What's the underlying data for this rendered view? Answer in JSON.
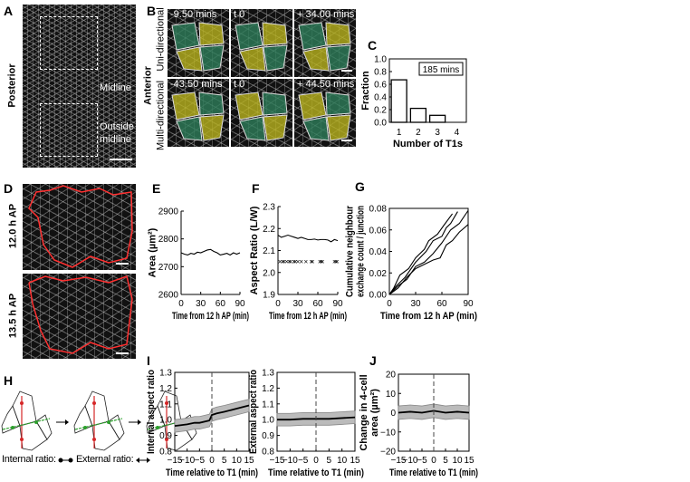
{
  "panels": {
    "A": "A",
    "B": "B",
    "C": "C",
    "D": "D",
    "E": "E",
    "F": "F",
    "G": "G",
    "H": "H",
    "I": "I",
    "J": "J"
  },
  "a": {
    "posterior": "Posterior",
    "anterior": "Anterior",
    "midline": "Midline",
    "outside1": "Outside",
    "outside2": "midline"
  },
  "b": {
    "row1_label": "Uni-directional",
    "row2_label": "Multi-directional",
    "row1": [
      "-9.50 mins",
      "t 0",
      "+ 34.00 mins"
    ],
    "row2": [
      "-43.50 mins",
      "t 0",
      "+ 44.50 mins"
    ],
    "colors": {
      "green": "#2e7d5a",
      "yellow": "#b8b21e"
    }
  },
  "d": {
    "top_label": "12.0 h AP",
    "bottom_label": "13.5 h AP",
    "outline_color": "#ff3030",
    "arrow_color": "#ffff00"
  },
  "h": {
    "internal": "Internal ratio:",
    "external": "External ratio:",
    "colors": {
      "internal": "#2ca02c",
      "external": "#d62728"
    }
  },
  "chart_data": [
    {
      "id": "C",
      "type": "bar",
      "categories": [
        "1",
        "2",
        "3",
        "4"
      ],
      "values": [
        0.67,
        0.22,
        0.11,
        0
      ],
      "ylabel": "Fraction",
      "xlabel": "Number of T1s",
      "ylim": [
        0,
        1.0
      ],
      "yticks": [
        "0.0",
        "0.2",
        "0.4",
        "0.6",
        "0.8",
        "1.0"
      ],
      "annotation": "185 mins"
    },
    {
      "id": "E",
      "type": "line",
      "ylabel": "Area (µm²)",
      "xlabel": "Time from 12 h AP (min)",
      "xlim": [
        0,
        90
      ],
      "ylim": [
        2600,
        2900
      ],
      "xticks": [
        "0",
        "30",
        "60",
        "90"
      ],
      "yticks": [
        "2600",
        "2700",
        "2800",
        "2900"
      ],
      "series": [
        {
          "x": [
            0,
            5,
            10,
            15,
            20,
            25,
            30,
            35,
            40,
            45,
            50,
            55,
            60,
            65,
            70,
            75,
            80,
            85,
            90
          ],
          "y": [
            2750,
            2745,
            2742,
            2748,
            2745,
            2752,
            2750,
            2755,
            2760,
            2762,
            2755,
            2750,
            2742,
            2745,
            2748,
            2742,
            2750,
            2745,
            2750
          ]
        }
      ]
    },
    {
      "id": "F",
      "type": "line",
      "ylabel": "Aspect Ratio (L/W)",
      "xlabel": "Time from 12 h AP (min)",
      "xlim": [
        0,
        90
      ],
      "ylim": [
        1.9,
        2.3
      ],
      "xticks": [
        "0",
        "30",
        "60",
        "90"
      ],
      "yticks": [
        "1.9",
        "2.0",
        "2.1",
        "2.2",
        "2.3"
      ],
      "series": [
        {
          "x": [
            0,
            5,
            10,
            15,
            20,
            25,
            30,
            35,
            40,
            45,
            50,
            55,
            60,
            65,
            70,
            75,
            80,
            85,
            90
          ],
          "y": [
            2.17,
            2.16,
            2.165,
            2.17,
            2.165,
            2.16,
            2.155,
            2.16,
            2.155,
            2.15,
            2.15,
            2.152,
            2.148,
            2.15,
            2.15,
            2.148,
            2.14,
            2.15,
            2.145
          ]
        }
      ],
      "markers": {
        "y": 2.05,
        "x": [
          3,
          7,
          9,
          13,
          17,
          19,
          24,
          26,
          30,
          35,
          42,
          50,
          52,
          63,
          65,
          67,
          85,
          87,
          89
        ]
      }
    },
    {
      "id": "G",
      "type": "line",
      "ylabel": "Cumulative neighbour exchange count / junction",
      "xlabel": "Time from 12 h AP (min)",
      "xlim": [
        0,
        90
      ],
      "ylim": [
        0,
        0.08
      ],
      "xticks": [
        "0",
        "30",
        "60",
        "90"
      ],
      "yticks": [
        "0.00",
        "0.02",
        "0.04",
        "0.06",
        "0.08"
      ],
      "series": [
        {
          "x": [
            0,
            5,
            12,
            22,
            30,
            40,
            45,
            55,
            62,
            72
          ],
          "y": [
            0,
            0.006,
            0.018,
            0.024,
            0.034,
            0.042,
            0.05,
            0.056,
            0.064,
            0.075
          ]
        },
        {
          "x": [
            0,
            8,
            18,
            30,
            42,
            50,
            60,
            65,
            70,
            78
          ],
          "y": [
            0,
            0.008,
            0.016,
            0.03,
            0.04,
            0.05,
            0.054,
            0.062,
            0.066,
            0.077
          ]
        },
        {
          "x": [
            0,
            10,
            20,
            30,
            40,
            50,
            60,
            70,
            80,
            90
          ],
          "y": [
            0,
            0.008,
            0.014,
            0.026,
            0.03,
            0.038,
            0.048,
            0.06,
            0.066,
            0.078
          ]
        },
        {
          "x": [
            0,
            10,
            20,
            30,
            40,
            50,
            58,
            65,
            72,
            80,
            90
          ],
          "y": [
            0,
            0.006,
            0.016,
            0.024,
            0.028,
            0.032,
            0.034,
            0.046,
            0.05,
            0.058,
            0.065
          ]
        }
      ]
    },
    {
      "id": "I1",
      "type": "area",
      "ylabel": "Internal aspect ratio",
      "xlabel": "Time relative to T1 (min)",
      "xlim": [
        -15,
        15
      ],
      "ylim": [
        0.8,
        1.3
      ],
      "xticks": [
        "-15",
        "-10",
        "-5",
        "0",
        "5",
        "10",
        "15"
      ],
      "yticks": [
        "0.8",
        "0.9",
        "1.0",
        "1.1",
        "1.2",
        "1.3"
      ],
      "vline": 0,
      "series": [
        {
          "x": [
            -15,
            -10,
            -7,
            -5,
            -1,
            0,
            2,
            5,
            10,
            15
          ],
          "y": [
            0.96,
            0.97,
            0.98,
            0.98,
            0.995,
            1.03,
            1.04,
            1.05,
            1.07,
            1.09
          ],
          "band": 0.04
        }
      ]
    },
    {
      "id": "I2",
      "type": "area",
      "ylabel": "External aspect ratio",
      "xlabel": "Time relative to T1 (min)",
      "xlim": [
        -15,
        15
      ],
      "ylim": [
        0.8,
        1.3
      ],
      "xticks": [
        "-15",
        "-10",
        "-5",
        "0",
        "5",
        "10",
        "15"
      ],
      "yticks": [
        "0.8",
        "0.9",
        "1.0",
        "1.1",
        "1.2",
        "1.3"
      ],
      "vline": 0,
      "series": [
        {
          "x": [
            -15,
            -10,
            -5,
            0,
            5,
            10,
            15
          ],
          "y": [
            1.0,
            1.0,
            1.005,
            1.005,
            1.005,
            1.01,
            1.015
          ],
          "band": 0.04
        }
      ]
    },
    {
      "id": "J",
      "type": "area",
      "ylabel": "Change in 4-cell area (µm²)",
      "xlabel": "Time relative to T1 (min)",
      "xlim": [
        -15,
        15
      ],
      "ylim": [
        -20,
        20
      ],
      "xticks": [
        "-15",
        "-10",
        "-5",
        "0",
        "5",
        "10",
        "15"
      ],
      "yticks": [
        "-20",
        "-10",
        "0",
        "10",
        "20"
      ],
      "vline": 0,
      "series": [
        {
          "x": [
            -15,
            -10,
            -5,
            0,
            5,
            10,
            15
          ],
          "y": [
            0,
            0.5,
            0,
            1,
            0,
            0.5,
            0
          ],
          "band": 3.5
        }
      ]
    }
  ]
}
